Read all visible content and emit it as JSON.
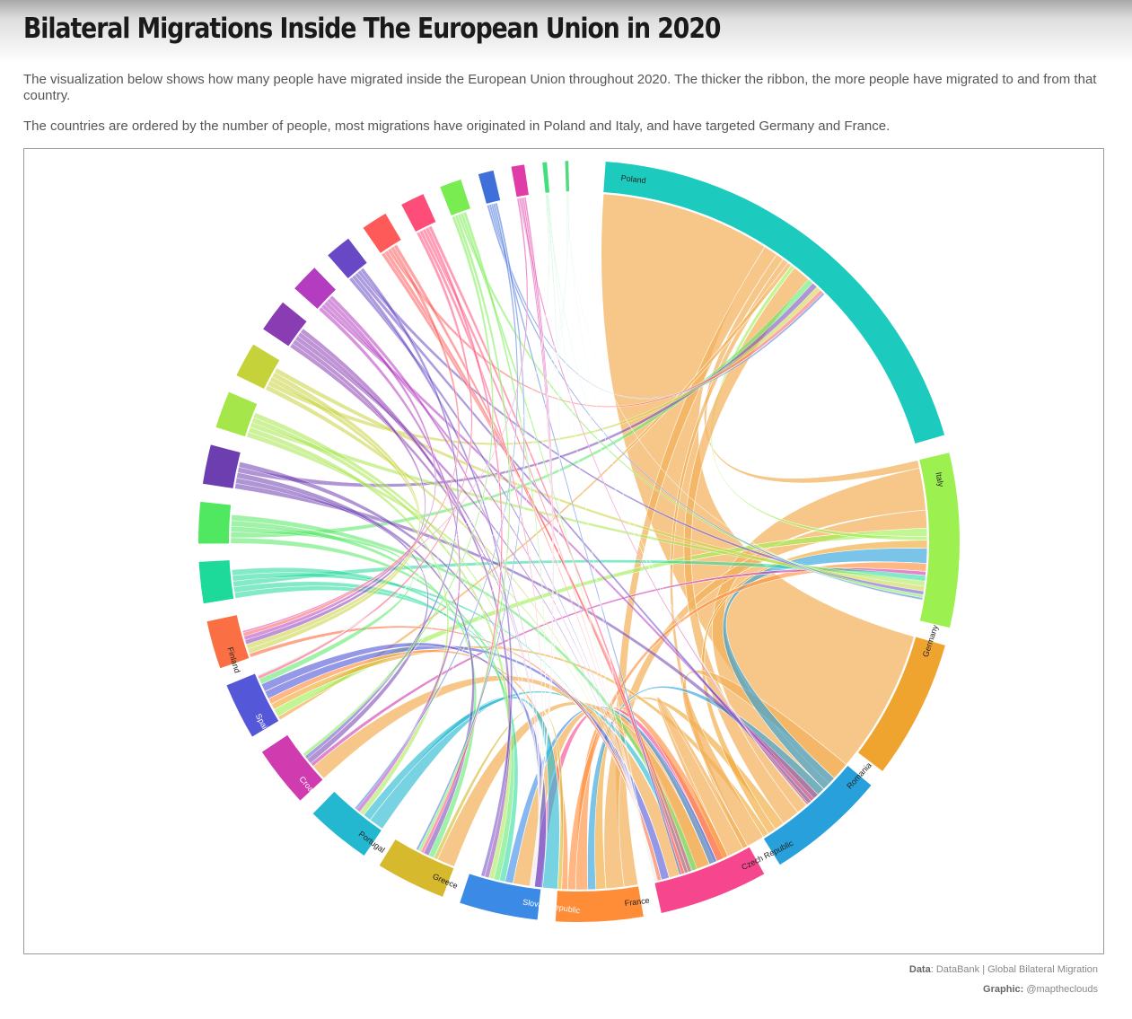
{
  "header": {
    "title": "Bilateral Migrations Inside The European Union in 2020",
    "description_1": "The visualization below shows how many people have migrated inside the European Union throughout 2020. The thicker the ribbon, the more people have migrated to and from that country.",
    "description_2": "The countries are ordered by the number of people, most migrations have originated in Poland and Italy, and have targeted Germany and France."
  },
  "footer": {
    "data_label": "Data",
    "data_value": ": DataBank | Global Bilateral Migration",
    "graphic_label": "Graphic:",
    "graphic_value": " @mapthe­clouds"
  },
  "chart_data": {
    "type": "chord",
    "title": "Bilateral Migrations Inside The European Union in 2020",
    "nodes": [
      {
        "name": "Poland",
        "color": "#1ccbbe",
        "size": 210
      },
      {
        "name": "Italy",
        "color": "#9cf04f",
        "size": 80
      },
      {
        "name": "Germany",
        "color": "#f0a430",
        "size": 64
      },
      {
        "name": "Romania",
        "color": "#28a0dc",
        "size": 55
      },
      {
        "name": "Czech Republic",
        "color": "#f6468e",
        "size": 50
      },
      {
        "name": "France",
        "color": "#ff8c37",
        "size": 40
      },
      {
        "name": "Slovak Republic",
        "color": "#3a8ae6",
        "size": 36
      },
      {
        "name": "Greece",
        "color": "#d6b92d",
        "size": 32
      },
      {
        "name": "Portugal",
        "color": "#23b8d0",
        "size": 30
      },
      {
        "name": "Croatia",
        "color": "#d13bb0",
        "size": 28
      },
      {
        "name": "Spain",
        "color": "#5458d8",
        "size": 26
      },
      {
        "name": "Finland",
        "color": "#fb6f45",
        "size": 22
      },
      {
        "name": "",
        "color": "#1dd99a",
        "size": 19
      },
      {
        "name": "",
        "color": "#50e860",
        "size": 19
      },
      {
        "name": "",
        "color": "#6d3eb0",
        "size": 18
      },
      {
        "name": "",
        "color": "#a5e64a",
        "size": 17
      },
      {
        "name": "",
        "color": "#c6d23a",
        "size": 16
      },
      {
        "name": "",
        "color": "#8a3cb2",
        "size": 15
      },
      {
        "name": "",
        "color": "#b33cc0",
        "size": 13
      },
      {
        "name": "",
        "color": "#6848c4",
        "size": 12
      },
      {
        "name": "",
        "color": "#ff5a5a",
        "size": 12
      },
      {
        "name": "",
        "color": "#ff4d7a",
        "size": 11
      },
      {
        "name": "",
        "color": "#78ec50",
        "size": 10
      },
      {
        "name": "",
        "color": "#3f6fd8",
        "size": 7
      },
      {
        "name": "",
        "color": "#e03ca8",
        "size": 6
      },
      {
        "name": "",
        "color": "#42e07c",
        "size": 2
      },
      {
        "name": "",
        "color": "#56d880",
        "size": 1.5
      }
    ],
    "flows": [
      {
        "source": "Poland",
        "target": "Germany",
        "value": 170
      },
      {
        "source": "Poland",
        "target": "France",
        "value": 14
      },
      {
        "source": "Poland",
        "target": "Italy",
        "value": 8
      },
      {
        "source": "Poland",
        "target": "Czech Republic",
        "value": 6
      },
      {
        "source": "Poland",
        "target": "Spain",
        "value": 4
      },
      {
        "source": "Italy",
        "target": "Germany",
        "value": 42
      },
      {
        "source": "Italy",
        "target": "France",
        "value": 18
      },
      {
        "source": "Italy",
        "target": "Spain",
        "value": 8
      },
      {
        "source": "Italy",
        "target": "Poland",
        "value": 4
      },
      {
        "source": "Germany",
        "target": "Poland",
        "value": 18
      },
      {
        "source": "Germany",
        "target": "France",
        "value": 10
      },
      {
        "source": "Germany",
        "target": "Italy",
        "value": 8
      },
      {
        "source": "Germany",
        "target": "Spain",
        "value": 6
      },
      {
        "source": "Romania",
        "target": "Germany",
        "value": 18
      },
      {
        "source": "Romania",
        "target": "Italy",
        "value": 15
      },
      {
        "source": "Romania",
        "target": "France",
        "value": 8
      },
      {
        "source": "Czech Republic",
        "target": "Germany",
        "value": 22
      },
      {
        "source": "Czech Republic",
        "target": "Slovak Republic",
        "value": 10
      },
      {
        "source": "France",
        "target": "Germany",
        "value": 12
      },
      {
        "source": "France",
        "target": "Italy",
        "value": 8
      },
      {
        "source": "France",
        "target": "Spain",
        "value": 6
      },
      {
        "source": "Slovak Republic",
        "target": "Czech Republic",
        "value": 18
      },
      {
        "source": "Slovak Republic",
        "target": "Germany",
        "value": 8
      },
      {
        "source": "Greece",
        "target": "Germany",
        "value": 18
      },
      {
        "source": "Greece",
        "target": "France",
        "value": 4
      },
      {
        "source": "Portugal",
        "target": "France",
        "value": 15
      },
      {
        "source": "Portugal",
        "target": "Germany",
        "value": 8
      },
      {
        "source": "Croatia",
        "target": "Germany",
        "value": 16
      },
      {
        "source": "Croatia",
        "target": "Italy",
        "value": 4
      },
      {
        "source": "Spain",
        "target": "Germany",
        "value": 8
      },
      {
        "source": "Spain",
        "target": "France",
        "value": 8
      },
      {
        "source": "Finland",
        "target": "Germany",
        "value": 4
      }
    ],
    "grid": false,
    "legend": "none"
  }
}
